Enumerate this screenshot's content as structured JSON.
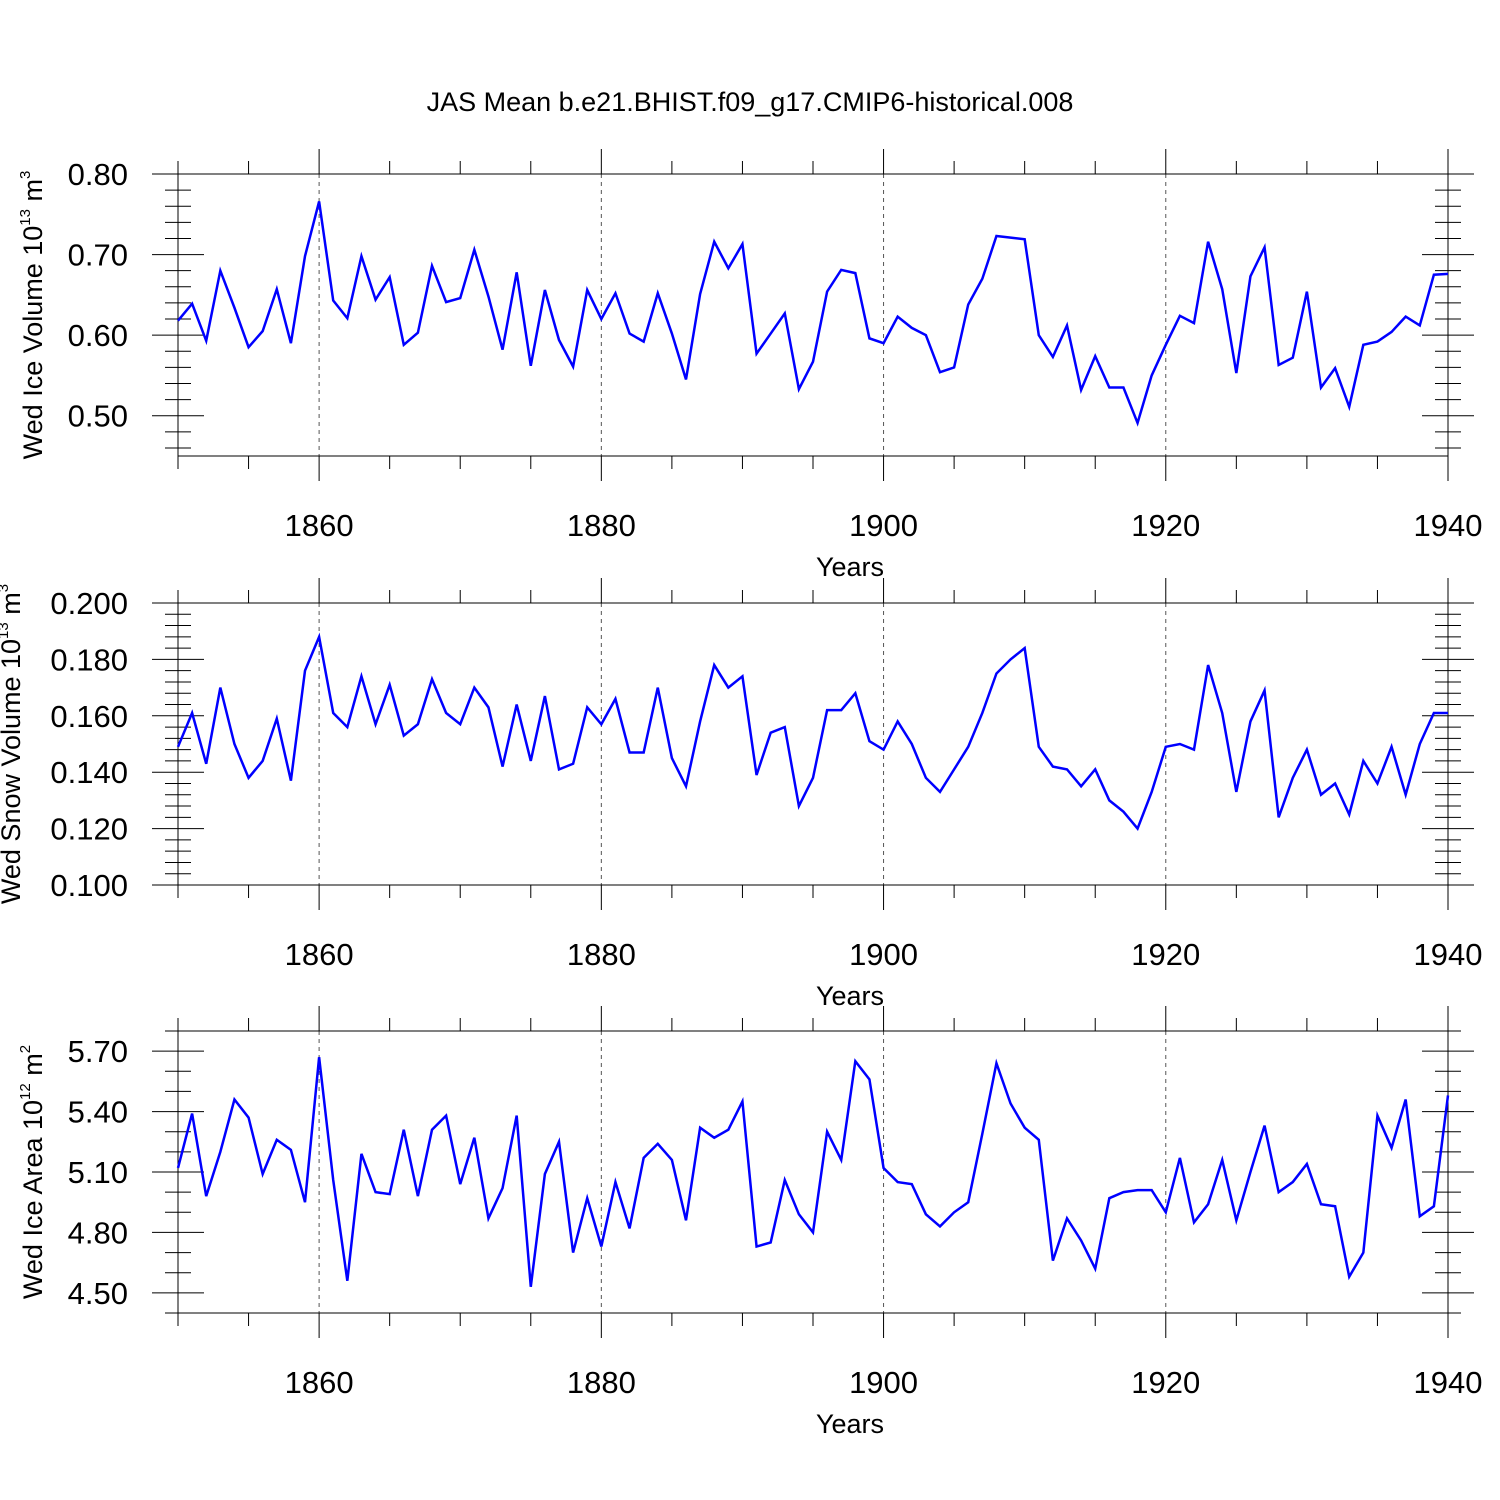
{
  "title": "JAS Mean b.e21.BHIST.f09_g17.CMIP6-historical.008",
  "colors": {
    "series": "#0000ff",
    "axes": "#000000",
    "grid": "#555555"
  },
  "chart_data": [
    {
      "type": "line",
      "ylabel_main": "Wed Ice Volume 10",
      "ylabel_exp": "13",
      "ylabel_unit": " m",
      "ylabel_unit_exp": "3",
      "xlabel": "Years",
      "xlim": [
        1850,
        1940
      ],
      "ylim": [
        0.45,
        0.8
      ],
      "xticks": [
        1860,
        1880,
        1900,
        1920,
        1940
      ],
      "xtick_labels": [
        "1860",
        "1880",
        "1900",
        "1920",
        "1940"
      ],
      "yticks": [
        0.5,
        0.6,
        0.7,
        0.8
      ],
      "ytick_labels": [
        "0.50",
        "0.60",
        "0.70",
        "0.80"
      ],
      "yminor_step": 0.02,
      "grid_x": true,
      "series": [
        {
          "name": "Wed Ice Volume",
          "x_start": 1850,
          "values": [
            0.618,
            0.639,
            0.593,
            0.68,
            0.634,
            0.585,
            0.605,
            0.657,
            0.59,
            0.698,
            0.766,
            0.643,
            0.621,
            0.698,
            0.644,
            0.672,
            0.588,
            0.603,
            0.686,
            0.641,
            0.646,
            0.706,
            0.648,
            0.582,
            0.678,
            0.562,
            0.656,
            0.594,
            0.561,
            0.656,
            0.62,
            0.652,
            0.602,
            0.592,
            0.652,
            0.602,
            0.545,
            0.651,
            0.716,
            0.683,
            0.713,
            0.577,
            0.602,
            0.627,
            0.533,
            0.567,
            0.654,
            0.681,
            0.677,
            0.596,
            0.59,
            0.623,
            0.609,
            0.6,
            0.554,
            0.56,
            0.638,
            0.67,
            0.723,
            0.721,
            0.719,
            0.6,
            0.573,
            0.612,
            0.532,
            0.574,
            0.535,
            0.535,
            0.491,
            0.55,
            0.588,
            0.624,
            0.615,
            0.716,
            0.657,
            0.553,
            0.673,
            0.709,
            0.563,
            0.572,
            0.654,
            0.535,
            0.559,
            0.511,
            0.588,
            0.592,
            0.604,
            0.623,
            0.612,
            0.675,
            0.676
          ]
        }
      ]
    },
    {
      "type": "line",
      "ylabel_main": "Wed Snow Volume 10",
      "ylabel_exp": "13",
      "ylabel_unit": " m",
      "ylabel_unit_exp": "3",
      "xlabel": "Years",
      "xlim": [
        1850,
        1940
      ],
      "ylim": [
        0.1,
        0.2
      ],
      "xticks": [
        1860,
        1880,
        1900,
        1920,
        1940
      ],
      "xtick_labels": [
        "1860",
        "1880",
        "1900",
        "1920",
        "1940"
      ],
      "yticks": [
        0.1,
        0.12,
        0.14,
        0.16,
        0.18,
        0.2
      ],
      "ytick_labels": [
        "0.100",
        "0.120",
        "0.140",
        "0.160",
        "0.180",
        "0.200"
      ],
      "yminor_step": 0.004,
      "grid_x": true,
      "series": [
        {
          "name": "Wed Snow Volume",
          "x_start": 1850,
          "values": [
            0.149,
            0.161,
            0.143,
            0.17,
            0.15,
            0.138,
            0.144,
            0.159,
            0.137,
            0.176,
            0.188,
            0.161,
            0.156,
            0.174,
            0.157,
            0.171,
            0.153,
            0.157,
            0.173,
            0.161,
            0.157,
            0.17,
            0.163,
            0.142,
            0.164,
            0.144,
            0.167,
            0.141,
            0.143,
            0.163,
            0.157,
            0.166,
            0.147,
            0.147,
            0.17,
            0.145,
            0.135,
            0.158,
            0.178,
            0.17,
            0.174,
            0.139,
            0.154,
            0.156,
            0.128,
            0.138,
            0.162,
            0.162,
            0.168,
            0.151,
            0.148,
            0.158,
            0.15,
            0.138,
            0.133,
            0.141,
            0.149,
            0.161,
            0.175,
            0.18,
            0.184,
            0.149,
            0.142,
            0.141,
            0.135,
            0.141,
            0.13,
            0.126,
            0.12,
            0.133,
            0.149,
            0.15,
            0.148,
            0.178,
            0.161,
            0.133,
            0.158,
            0.169,
            0.124,
            0.138,
            0.148,
            0.132,
            0.136,
            0.125,
            0.144,
            0.136,
            0.149,
            0.132,
            0.15,
            0.161,
            0.161
          ]
        }
      ]
    },
    {
      "type": "line",
      "ylabel_main": "Wed Ice Area 10",
      "ylabel_exp": "12",
      "ylabel_unit": " m",
      "ylabel_unit_exp": "2",
      "xlabel": "Years",
      "xlim": [
        1850,
        1940
      ],
      "ylim": [
        4.4,
        5.8
      ],
      "xticks": [
        1860,
        1880,
        1900,
        1920,
        1940
      ],
      "xtick_labels": [
        "1860",
        "1880",
        "1900",
        "1920",
        "1940"
      ],
      "yticks": [
        4.5,
        4.8,
        5.1,
        5.4,
        5.7
      ],
      "ytick_labels": [
        "4.50",
        "4.80",
        "5.10",
        "5.40",
        "5.70"
      ],
      "yminor_step": 0.1,
      "grid_x": true,
      "series": [
        {
          "name": "Wed Ice Area",
          "x_start": 1850,
          "values": [
            5.12,
            5.39,
            4.98,
            5.2,
            5.46,
            5.37,
            5.09,
            5.26,
            5.21,
            4.95,
            5.67,
            5.06,
            4.56,
            5.19,
            5.0,
            4.99,
            5.31,
            4.98,
            5.31,
            5.38,
            5.04,
            5.27,
            4.87,
            5.02,
            5.38,
            4.53,
            5.09,
            5.25,
            4.7,
            4.97,
            4.73,
            5.05,
            4.82,
            5.17,
            5.24,
            5.16,
            4.86,
            5.32,
            5.27,
            5.31,
            5.45,
            4.73,
            4.75,
            5.06,
            4.89,
            4.8,
            5.3,
            5.16,
            5.65,
            5.56,
            5.12,
            5.05,
            5.04,
            4.89,
            4.83,
            4.9,
            4.95,
            5.29,
            5.64,
            5.44,
            5.32,
            5.26,
            4.66,
            4.87,
            4.76,
            4.62,
            4.97,
            5.0,
            5.01,
            5.01,
            4.9,
            5.17,
            4.85,
            4.94,
            5.16,
            4.86,
            5.1,
            5.33,
            5.0,
            5.05,
            5.14,
            4.94,
            4.93,
            4.58,
            4.7,
            5.38,
            5.22,
            5.46,
            4.88,
            4.93,
            5.48
          ]
        }
      ]
    }
  ]
}
